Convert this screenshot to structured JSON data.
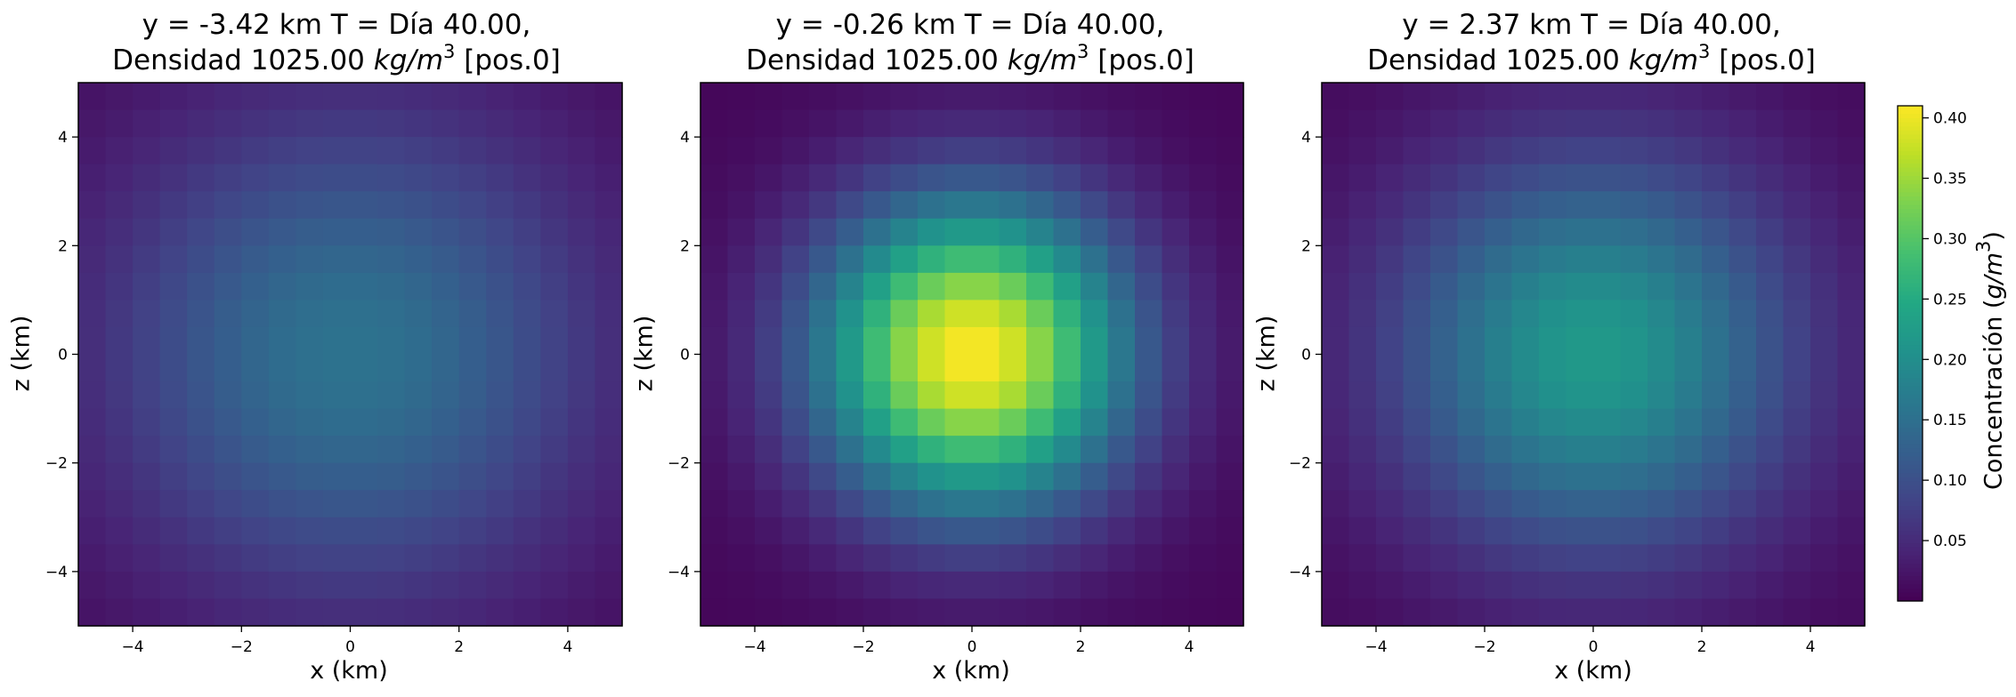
{
  "colors": {
    "viridis_low": "#440154",
    "viridis_mid": "#21918c",
    "viridis_high": "#fde725"
  },
  "chart_data": [
    {
      "type": "heatmap",
      "title_line1": "y = -3.42 km  T = Día 40.00,",
      "title_line2_prefix": "Densidad 1025.00 ",
      "title_unit_base": "kg/m",
      "title_unit_exp": "3",
      "title_line2_suffix": " [pos.0]",
      "xlabel": "x (km)",
      "ylabel": "z (km)",
      "xlim": [
        -5,
        5
      ],
      "ylim": [
        -5,
        5
      ],
      "xticks": [
        -4,
        -2,
        0,
        2,
        4
      ],
      "yticks": [
        -4,
        -2,
        0,
        2,
        4
      ],
      "grid_cells": 20,
      "peak_value": 0.155,
      "background_value": 0.006,
      "spread_km": 3.2
    },
    {
      "type": "heatmap",
      "title_line1": "y = -0.26 km  T = Día 40.00,",
      "title_line2_prefix": "Densidad 1025.00 ",
      "title_unit_base": "kg/m",
      "title_unit_exp": "3",
      "title_line2_suffix": " [pos.0]",
      "xlabel": "x (km)",
      "ylabel": "z (km)",
      "xlim": [
        -5,
        5
      ],
      "ylim": [
        -5,
        5
      ],
      "xticks": [
        -4,
        -2,
        0,
        2,
        4
      ],
      "yticks": [
        -4,
        -2,
        0,
        2,
        4
      ],
      "grid_cells": 20,
      "peak_value": 0.41,
      "background_value": 0.006,
      "spread_km": 2.0
    },
    {
      "type": "heatmap",
      "title_line1": "y = 2.37 km  T = Día 40.00,",
      "title_line2_prefix": "Densidad 1025.00 ",
      "title_unit_base": "kg/m",
      "title_unit_exp": "3",
      "title_line2_suffix": " [pos.0]",
      "xlabel": "x (km)",
      "ylabel": "z (km)",
      "xlim": [
        -5,
        5
      ],
      "ylim": [
        -5,
        5
      ],
      "xticks": [
        -4,
        -2,
        0,
        2,
        4
      ],
      "yticks": [
        -4,
        -2,
        0,
        2,
        4
      ],
      "grid_cells": 20,
      "peak_value": 0.22,
      "background_value": 0.006,
      "spread_km": 2.6
    }
  ],
  "colorbar": {
    "label_prefix": "Concentración (",
    "label_unit_base": "g/m",
    "label_unit_exp": "3",
    "label_suffix": ")",
    "colormap": "viridis",
    "vmin": 0.0,
    "vmax": 0.41,
    "ticks": [
      "0.05",
      "0.10",
      "0.15",
      "0.20",
      "0.25",
      "0.30",
      "0.35",
      "0.40"
    ]
  }
}
